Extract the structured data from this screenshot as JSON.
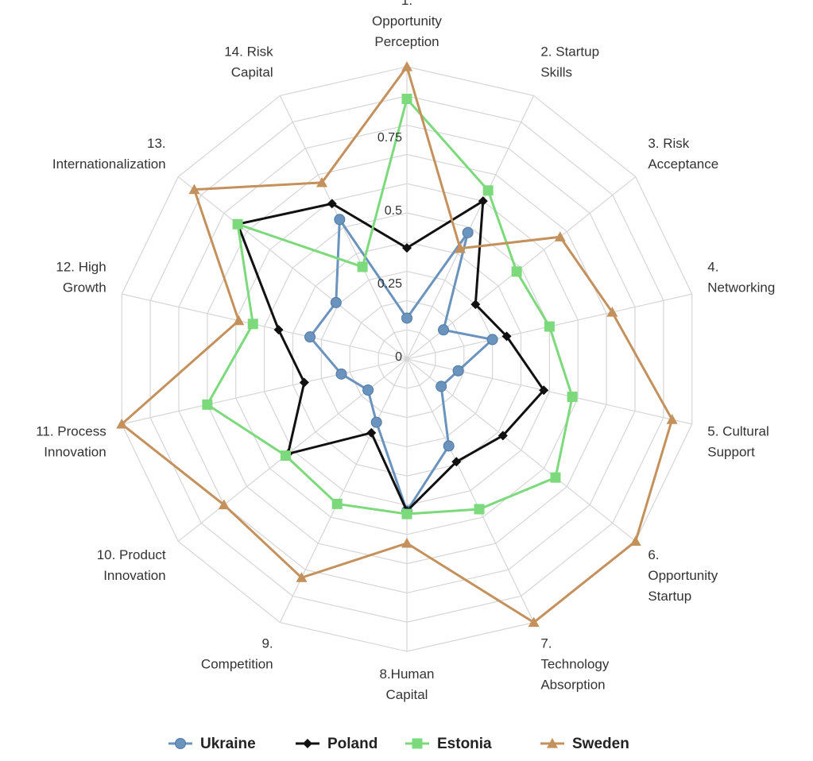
{
  "chart_data": {
    "type": "radar",
    "title": "",
    "axes": [
      [
        "1.",
        "Opportunity",
        "Perception"
      ],
      [
        "2. Startup",
        "Skills"
      ],
      [
        "3. Risk",
        "Acceptance"
      ],
      [
        "4.",
        "Networking"
      ],
      [
        "5. Cultural",
        "Support"
      ],
      [
        "6.",
        "Opportunity",
        "Startup"
      ],
      [
        "7.",
        "Technology",
        "Absorption"
      ],
      [
        "8.Human",
        "Capital"
      ],
      [
        "9.",
        "Competition"
      ],
      [
        "10. Product",
        "Innovation"
      ],
      [
        "11. Process",
        "Innovation"
      ],
      [
        "12. High",
        "Growth"
      ],
      [
        "13.",
        "Internationalization"
      ],
      [
        "14. Risk",
        "Capital"
      ]
    ],
    "rlim": [
      0,
      1
    ],
    "ticks": [
      "0",
      "0.25",
      "0.5",
      "0.75"
    ],
    "tick_values": [
      0,
      0.25,
      0.5,
      0.75
    ],
    "grid": true,
    "legend_position": "bottom",
    "series": [
      {
        "name": "Ukraine",
        "color": "#6a93bd",
        "marker": "circle",
        "values": [
          0.14,
          0.48,
          0.16,
          0.3,
          0.18,
          0.15,
          0.33,
          0.52,
          0.24,
          0.17,
          0.23,
          0.34,
          0.31,
          0.53
        ]
      },
      {
        "name": "Poland",
        "color": "#111111",
        "marker": "diamond",
        "values": [
          0.38,
          0.6,
          0.3,
          0.35,
          0.48,
          0.42,
          0.39,
          0.52,
          0.28,
          0.52,
          0.36,
          0.45,
          0.74,
          0.59
        ]
      },
      {
        "name": "Estonia",
        "color": "#7cd97c",
        "marker": "square",
        "values": [
          0.89,
          0.64,
          0.48,
          0.5,
          0.58,
          0.65,
          0.57,
          0.53,
          0.55,
          0.53,
          0.7,
          0.54,
          0.74,
          0.35
        ]
      },
      {
        "name": "Sweden",
        "color": "#c4915d",
        "marker": "triangle",
        "values": [
          1.0,
          0.42,
          0.67,
          0.72,
          0.93,
          1.0,
          1.0,
          0.63,
          0.83,
          0.8,
          1.0,
          0.59,
          0.93,
          0.67
        ]
      }
    ]
  }
}
